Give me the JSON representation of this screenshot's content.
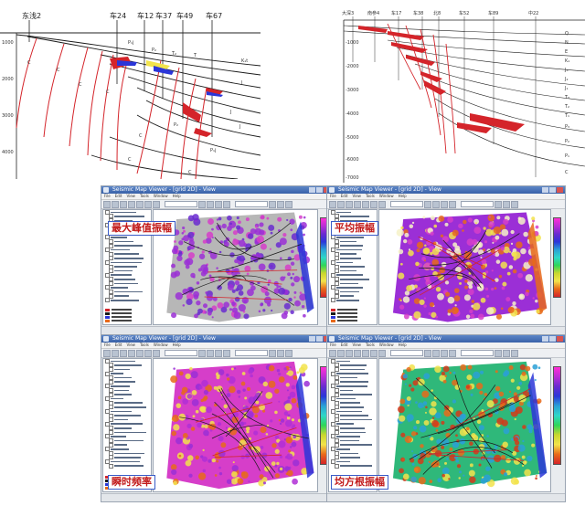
{
  "left_section": {
    "wells": [
      "东浅2",
      "车24",
      "车12",
      "车37",
      "车49",
      "车67"
    ],
    "depths": [
      "1000",
      "2000",
      "3000",
      "4000"
    ],
    "strata": [
      "C",
      "C",
      "C",
      "C",
      "P₁j",
      "P₂",
      "T₂",
      "T",
      "K₁t",
      "J",
      "J",
      "J",
      "P₁j",
      "P₂",
      "C",
      "C",
      "C"
    ]
  },
  "right_section": {
    "wells": [
      "大深3",
      "南参4",
      "车17",
      "车38",
      "北8",
      "车52",
      "车89",
      "中22"
    ],
    "depths": [
      "-1000",
      "-2000",
      "-3000",
      "-4000",
      "-5000",
      "-6000",
      "-7000"
    ],
    "strata": [
      "Q",
      "N",
      "E",
      "K₁",
      "J₃",
      "J₂",
      "J₁",
      "T₃",
      "T₂",
      "T₁",
      "P₃",
      "P₂",
      "P₁",
      "C"
    ]
  },
  "windows": [
    {
      "id": "max-peak",
      "title": "Seismic Map Viewer - [grid 2D] - View",
      "label": "最大峰值振幅",
      "colorscheme": "max"
    },
    {
      "id": "avg",
      "title": "Seismic Map Viewer - [grid 2D] - View",
      "label": "平均振幅",
      "colorscheme": "avg"
    },
    {
      "id": "inst-freq",
      "title": "Seismic Map Viewer - [grid 2D] - View",
      "label": "瞬时频率",
      "colorscheme": "inst"
    },
    {
      "id": "rms",
      "title": "Seismic Map Viewer - [grid 2D] - View",
      "label": "均方根振幅",
      "colorscheme": "rms"
    }
  ],
  "menu": [
    "File",
    "Edit",
    "View",
    "Tools",
    "Window",
    "Help"
  ],
  "colors": {
    "fault": "#d4242a",
    "line": "#1a1a1a",
    "label_text": "#c21a1a",
    "label_border": "#3a5cc8",
    "purple": "#9b2fd6",
    "magenta": "#d63ec9",
    "orange": "#e86a1a",
    "yellow": "#f2e34c",
    "gray": "#b7b7b7",
    "blue": "#2b36d8"
  }
}
